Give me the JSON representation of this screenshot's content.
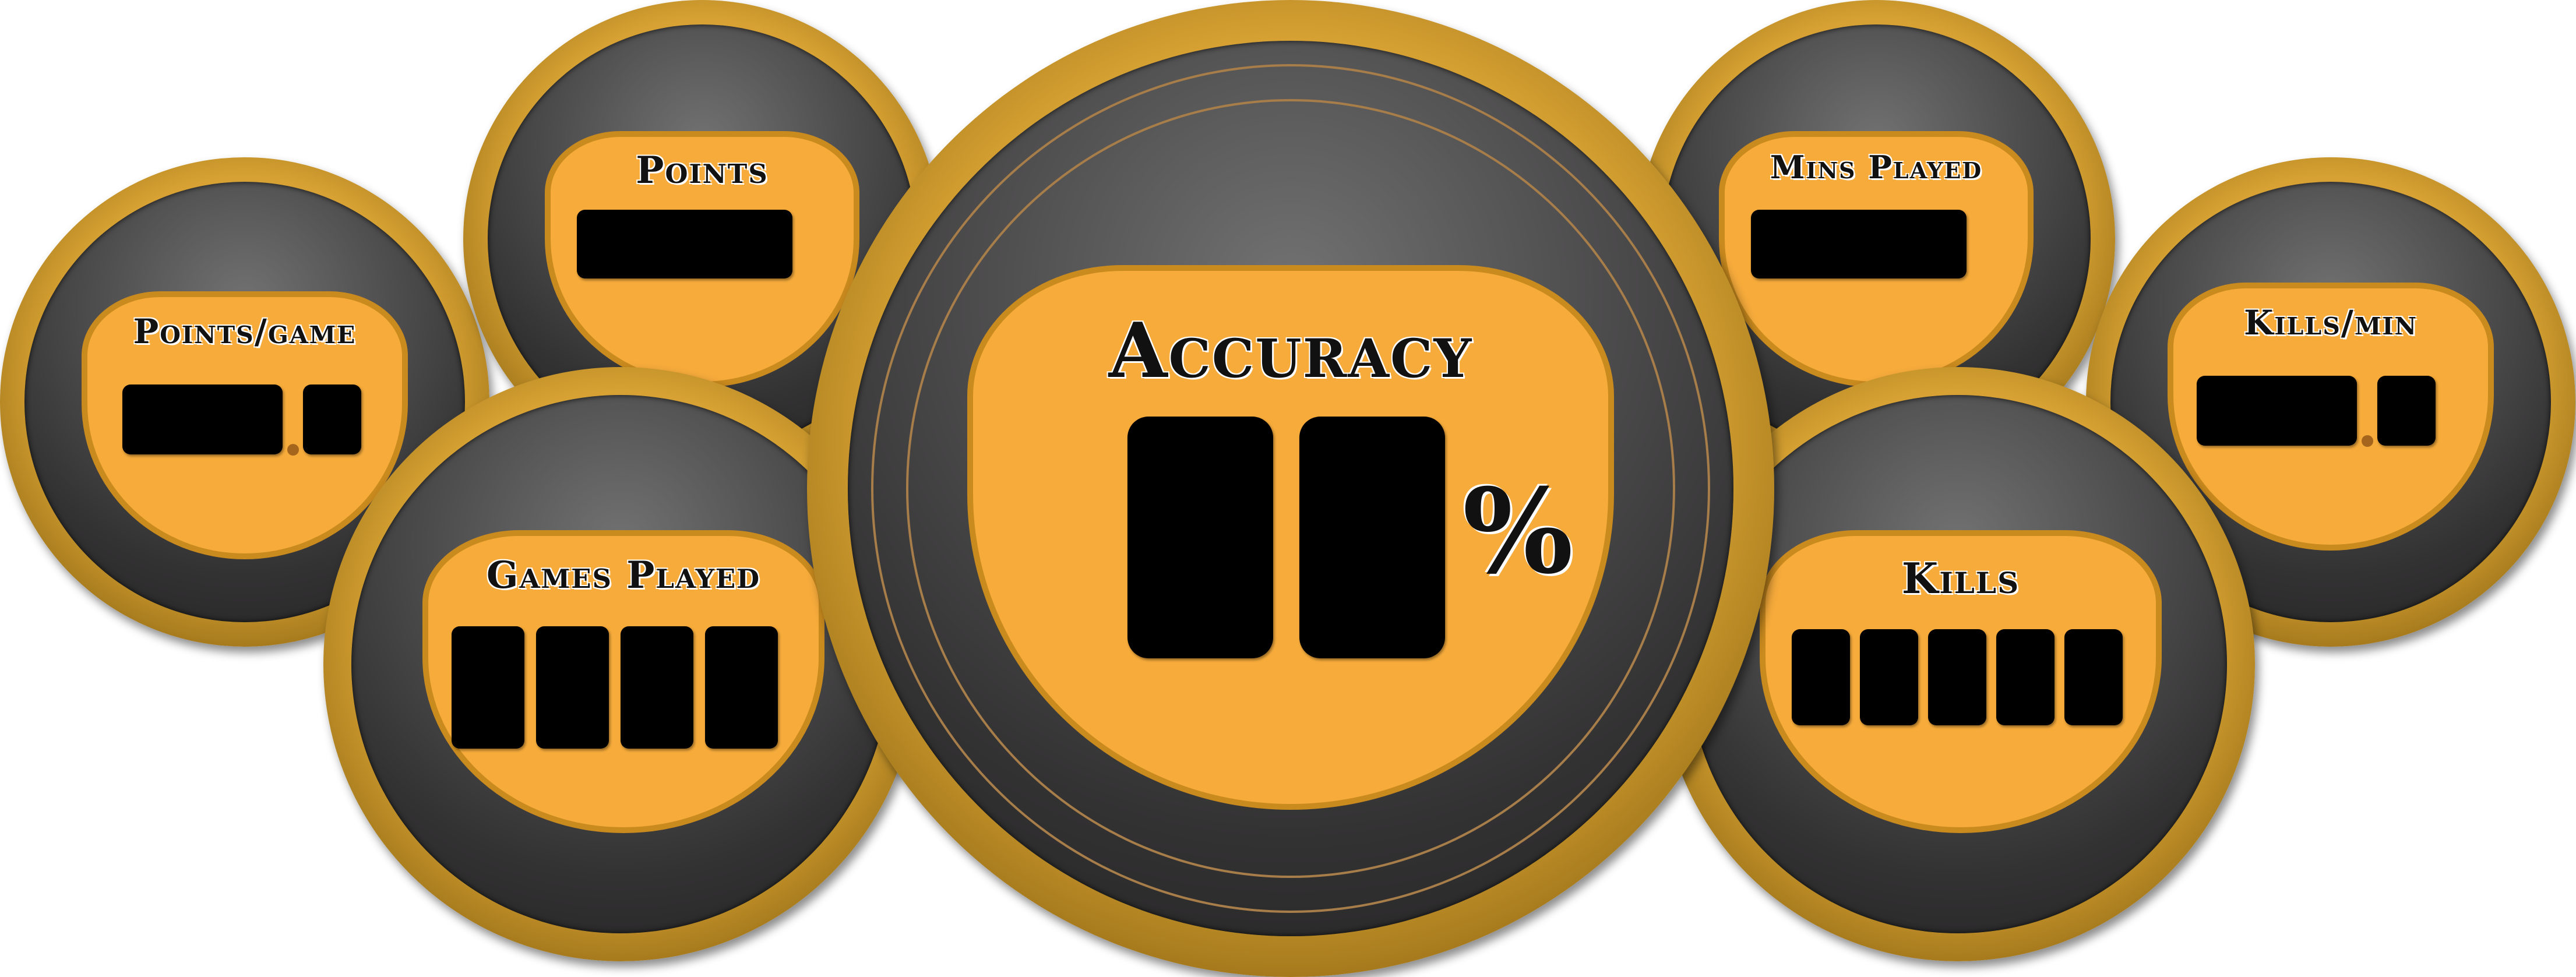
{
  "gauges": {
    "points_per_game": {
      "label": "Points/game"
    },
    "points": {
      "label": "Points"
    },
    "games_played": {
      "label": "Games Played"
    },
    "accuracy": {
      "label": "Accuracy",
      "unit": "%"
    },
    "mins_played": {
      "label": "Mins Played"
    },
    "kills": {
      "label": "Kills"
    },
    "kills_per_min": {
      "label": "Kills/min"
    }
  },
  "colors": {
    "face": "#f6ab3b",
    "bezel": "#d7a233",
    "dial": "#3a393a",
    "display": "#000000"
  }
}
